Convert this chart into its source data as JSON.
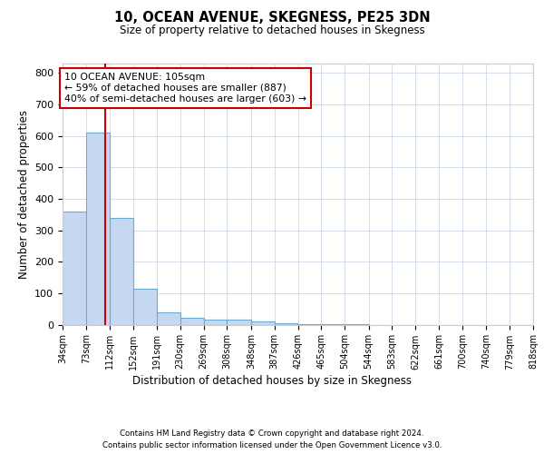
{
  "title": "10, OCEAN AVENUE, SKEGNESS, PE25 3DN",
  "subtitle": "Size of property relative to detached houses in Skegness",
  "xlabel": "Distribution of detached houses by size in Skegness",
  "ylabel": "Number of detached properties",
  "bin_labels": [
    "34sqm",
    "73sqm",
    "112sqm",
    "152sqm",
    "191sqm",
    "230sqm",
    "269sqm",
    "308sqm",
    "348sqm",
    "387sqm",
    "426sqm",
    "465sqm",
    "504sqm",
    "544sqm",
    "583sqm",
    "622sqm",
    "661sqm",
    "700sqm",
    "740sqm",
    "779sqm",
    "818sqm"
  ],
  "bin_edges": [
    34,
    73,
    112,
    152,
    191,
    230,
    269,
    308,
    348,
    387,
    426,
    465,
    504,
    544,
    583,
    622,
    661,
    700,
    740,
    779,
    818
  ],
  "bar_heights": [
    358,
    611,
    338,
    113,
    38,
    22,
    17,
    15,
    10,
    5,
    2,
    1,
    1,
    0,
    0,
    0,
    0,
    0,
    0,
    0
  ],
  "bar_color": "#c5d8f0",
  "bar_edge_color": "#6aaad4",
  "property_line_x": 105,
  "property_line_color": "#cc0000",
  "annotation_line1": "10 OCEAN AVENUE: 105sqm",
  "annotation_line2": "← 59% of detached houses are smaller (887)",
  "annotation_line3": "40% of semi-detached houses are larger (603) →",
  "annotation_box_color": "#ffffff",
  "annotation_box_edge_color": "#cc0000",
  "ylim": [
    0,
    830
  ],
  "yticks": [
    0,
    100,
    200,
    300,
    400,
    500,
    600,
    700,
    800
  ],
  "background_color": "#ffffff",
  "grid_color": "#d0d8e8",
  "footer_line1": "Contains HM Land Registry data © Crown copyright and database right 2024.",
  "footer_line2": "Contains public sector information licensed under the Open Government Licence v3.0."
}
